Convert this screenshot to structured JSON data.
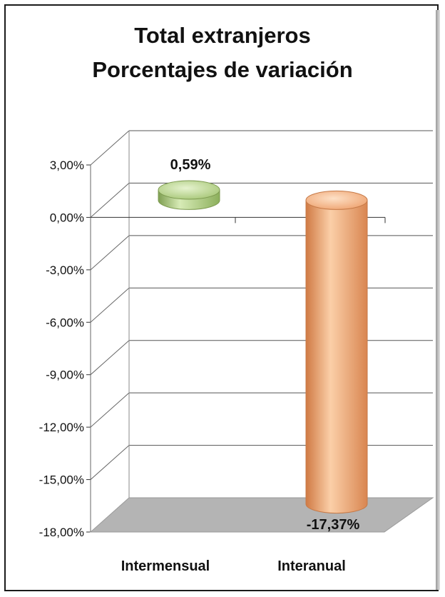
{
  "chart_data": {
    "type": "bar",
    "title": [
      "Total extranjeros",
      "Porcentajes de variación"
    ],
    "categories": [
      "Intermensual",
      "Interanual"
    ],
    "values": [
      0.59,
      -17.37
    ],
    "data_labels": [
      "0,59%",
      "-17,37%"
    ],
    "ylim": [
      -18,
      3
    ],
    "yticks": [
      3,
      0,
      -3,
      -6,
      -9,
      -12,
      -15,
      -18
    ],
    "ytick_labels": [
      "3,00%",
      "0,00%",
      "-3,00%",
      "-6,00%",
      "-9,00%",
      "-12,00%",
      "-15,00%",
      "-18,00%"
    ],
    "grid": true,
    "style": "3d-cylinder",
    "colors": [
      "#a9c97a",
      "#f0a876"
    ]
  }
}
